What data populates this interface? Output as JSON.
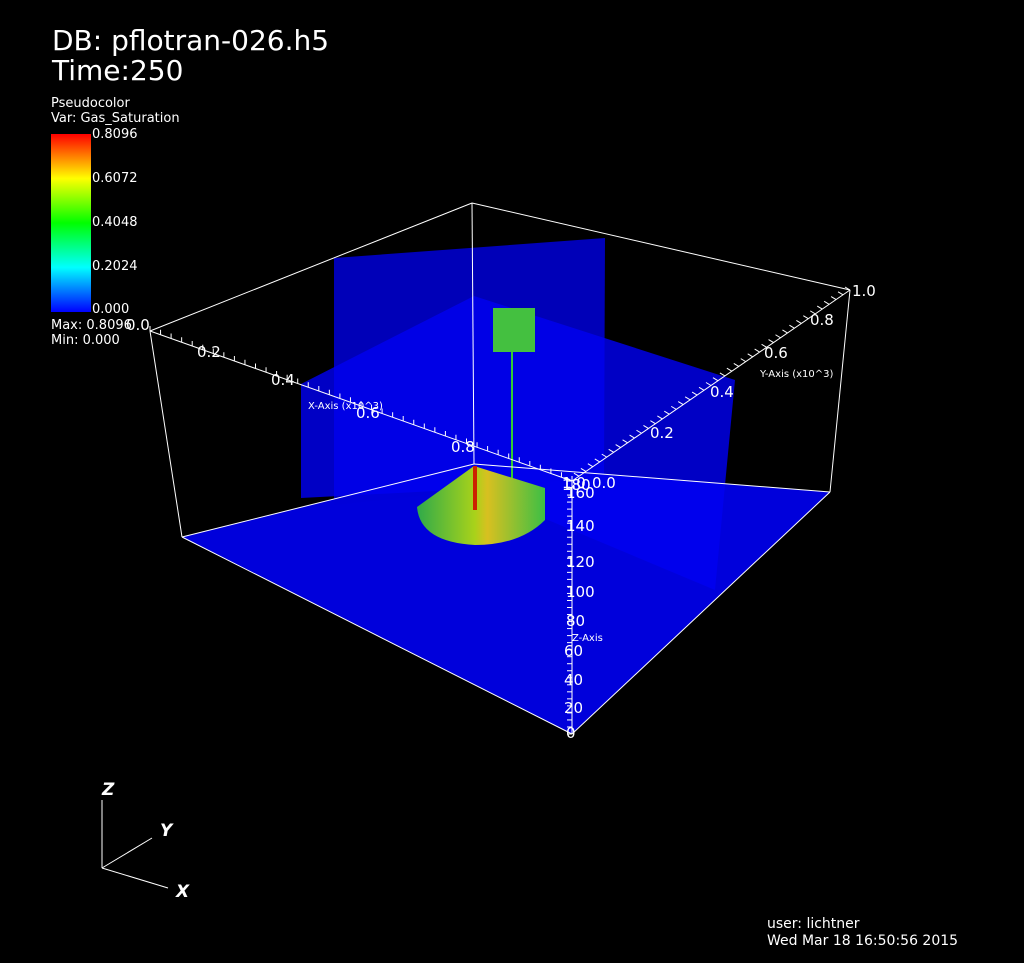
{
  "header": {
    "db": "DB: pflotran-026.h5",
    "time": "Time:250"
  },
  "legend": {
    "plot_type": "Pseudocolor",
    "variable": "Var: Gas_Saturation",
    "ticks": [
      "0.8096",
      "0.6072",
      "0.4048",
      "0.2024",
      "0.000"
    ],
    "max": "Max:  0.8096",
    "min": "Min:  0.000",
    "colormap": [
      "#0000ff",
      "#00ffff",
      "#00ff00",
      "#ffff00",
      "#ff0000"
    ]
  },
  "axes": {
    "x_title": "X-Axis (x10^3)",
    "x_ticks": [
      "0.0",
      "0.2",
      "0.4",
      "0.6",
      "0.8",
      "1.0"
    ],
    "y_title": "Y-Axis (x10^3)",
    "y_ticks": [
      "0.0",
      "0.2",
      "0.4",
      "0.6",
      "0.8",
      "1.0"
    ],
    "z_title": "Z-Axis",
    "z_ticks": [
      "0",
      "20",
      "40",
      "60",
      "80",
      "100",
      "120",
      "140",
      "160",
      "180"
    ]
  },
  "triad": {
    "x": "X",
    "y": "Y",
    "z": "Z"
  },
  "footer": {
    "user": "user: lichtner",
    "timestamp": "Wed Mar 18 16:50:56 2015"
  },
  "colors": {
    "background": "#000000",
    "slice": "#0000ff",
    "plume": "#3fbf3f"
  }
}
